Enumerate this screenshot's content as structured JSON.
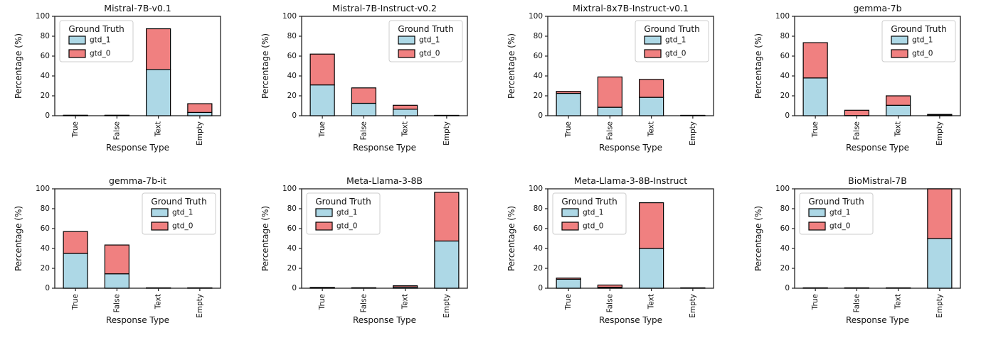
{
  "figure": {
    "background": "#ffffff",
    "rows": 2,
    "cols": 4
  },
  "chart_data": {
    "type": "bar",
    "stacked": true,
    "grid": false,
    "categories": [
      "True",
      "False",
      "Text",
      "Empty"
    ],
    "xlabel": "Response Type",
    "ylabel": "Percentage (%)",
    "ylim": [
      0,
      100
    ],
    "yticks": [
      0,
      20,
      40,
      60,
      80,
      100
    ],
    "legend_title": "Ground Truth",
    "series_names": [
      "gtd_1",
      "gtd_0"
    ],
    "colors": {
      "gtd_1": "#ADD8E6",
      "gtd_0": "#F08080",
      "bar_edge": "#000000",
      "spine": "#222222"
    },
    "subplots": [
      {
        "title": "Mistral-7B-v0.1",
        "legend_position": "upper-left",
        "series": [
          {
            "name": "gtd_1",
            "values": [
              0.3,
              0.3,
              46.5,
              3.3
            ]
          },
          {
            "name": "gtd_0",
            "values": [
              0.2,
              0.2,
              41.0,
              8.8
            ]
          }
        ]
      },
      {
        "title": "Mistral-7B-Instruct-v0.2",
        "legend_position": "upper-right",
        "series": [
          {
            "name": "gtd_1",
            "values": [
              31.0,
              12.5,
              6.5,
              0.2
            ]
          },
          {
            "name": "gtd_0",
            "values": [
              31.0,
              15.5,
              4.0,
              0.2
            ]
          }
        ]
      },
      {
        "title": "Mixtral-8x7B-Instruct-v0.1",
        "legend_position": "upper-right",
        "series": [
          {
            "name": "gtd_1",
            "values": [
              22.5,
              8.5,
              18.5,
              0.2
            ]
          },
          {
            "name": "gtd_0",
            "values": [
              2.0,
              30.5,
              18.0,
              0.2
            ]
          }
        ]
      },
      {
        "title": "gemma-7b",
        "legend_position": "upper-right",
        "series": [
          {
            "name": "gtd_1",
            "values": [
              38.0,
              0.2,
              10.5,
              0.6
            ]
          },
          {
            "name": "gtd_0",
            "values": [
              35.5,
              5.3,
              9.5,
              0.7
            ]
          }
        ]
      },
      {
        "title": "gemma-7b-it",
        "legend_position": "upper-right",
        "series": [
          {
            "name": "gtd_1",
            "values": [
              35.0,
              14.5,
              0.2,
              0.2
            ]
          },
          {
            "name": "gtd_0",
            "values": [
              22.0,
              29.0,
              0.2,
              0.2
            ]
          }
        ]
      },
      {
        "title": "Meta-Llama-3-8B",
        "legend_position": "upper-left",
        "series": [
          {
            "name": "gtd_1",
            "values": [
              0.4,
              0.3,
              1.2,
              47.5
            ]
          },
          {
            "name": "gtd_0",
            "values": [
              0.4,
              0.2,
              1.3,
              49.0
            ]
          }
        ]
      },
      {
        "title": "Meta-Llama-3-8B-Instruct",
        "legend_position": "upper-left",
        "series": [
          {
            "name": "gtd_1",
            "values": [
              9.0,
              1.0,
              40.0,
              0.2
            ]
          },
          {
            "name": "gtd_0",
            "values": [
              1.2,
              2.2,
              46.0,
              0.2
            ]
          }
        ]
      },
      {
        "title": "BioMistral-7B",
        "legend_position": "upper-left",
        "series": [
          {
            "name": "gtd_1",
            "values": [
              0.2,
              0.2,
              0.2,
              50.0
            ]
          },
          {
            "name": "gtd_0",
            "values": [
              0.2,
              0.2,
              0.2,
              50.0
            ]
          }
        ]
      }
    ]
  }
}
